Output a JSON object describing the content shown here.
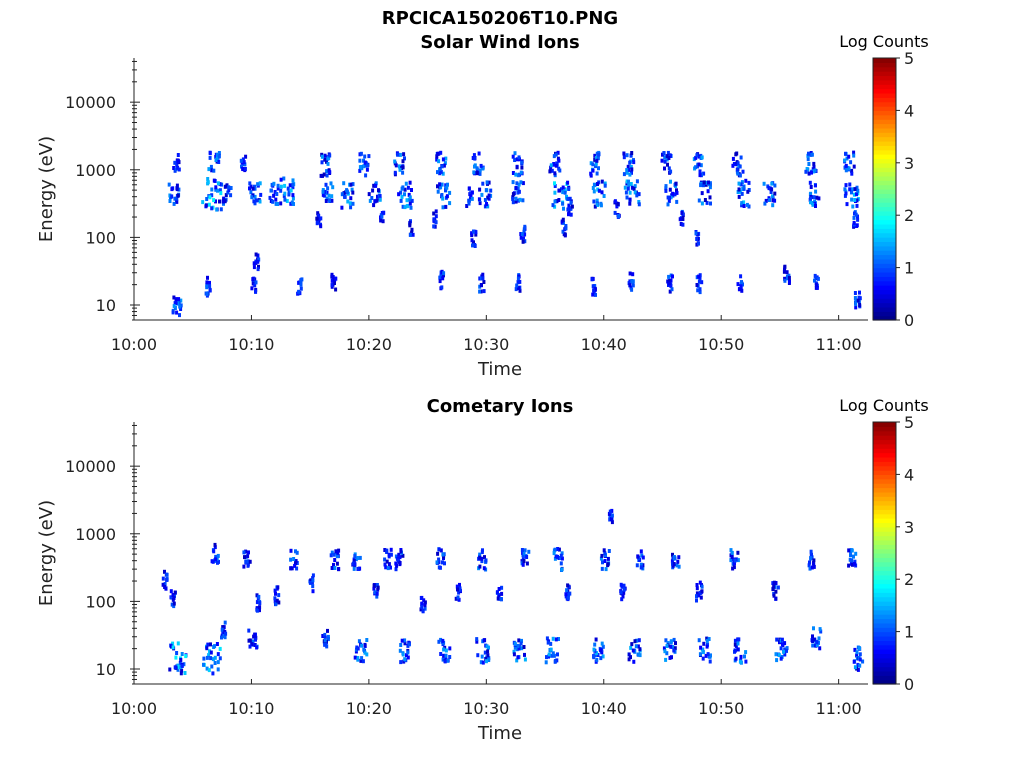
{
  "figure": {
    "title": "RPCICA150206T10.PNG"
  },
  "chart_data": [
    {
      "type": "heatmap",
      "title": "Solar Wind Ions",
      "xlabel": "Time",
      "ylabel": "Energy (eV)",
      "x_ticks": [
        "10:00",
        "10:10",
        "10:20",
        "10:30",
        "10:40",
        "10:50",
        "11:00"
      ],
      "x_range_minutes": [
        0,
        62.5
      ],
      "y_scale": "log",
      "y_range": [
        6,
        45000
      ],
      "y_ticks": [
        10,
        100,
        1000,
        10000
      ],
      "y_tick_labels": [
        "10",
        "100",
        "1000",
        "10000"
      ],
      "colorbar": {
        "label": "Log Counts",
        "range": [
          0,
          5
        ],
        "ticks": [
          "0",
          "1",
          "2",
          "3",
          "4",
          "5"
        ],
        "colormap": "jet"
      },
      "clusters": [
        [
          3.2,
          470,
          1
        ],
        [
          3.5,
          1300,
          0.5
        ],
        [
          3.6,
          10,
          0.8
        ],
        [
          6.2,
          20,
          0.5
        ],
        [
          6.5,
          470,
          1.7
        ],
        [
          6.7,
          1500,
          0.9
        ],
        [
          7.8,
          470,
          0.7
        ],
        [
          9.2,
          1400,
          0.4
        ],
        [
          10.2,
          460,
          1.0
        ],
        [
          10.3,
          48,
          0.4
        ],
        [
          10.1,
          21,
          0.4
        ],
        [
          11.8,
          470,
          0.7
        ],
        [
          12.9,
          510,
          1.3
        ],
        [
          14.0,
          21,
          0.4
        ],
        [
          15.6,
          200,
          0.4
        ],
        [
          16.3,
          1300,
          1.0
        ],
        [
          16.4,
          470,
          0.9
        ],
        [
          16.9,
          24,
          0.4
        ],
        [
          18.0,
          440,
          1.1
        ],
        [
          19.5,
          1300,
          0.9
        ],
        [
          20.4,
          460,
          1.0
        ],
        [
          21.0,
          200,
          0.3
        ],
        [
          22.5,
          1300,
          0.9
        ],
        [
          23.0,
          460,
          1.2
        ],
        [
          23.5,
          150,
          0.3
        ],
        [
          25.5,
          200,
          0.3
        ],
        [
          26.0,
          1300,
          0.9
        ],
        [
          26.2,
          460,
          1.1
        ],
        [
          26.1,
          25,
          0.4
        ],
        [
          28.5,
          430,
          0.6
        ],
        [
          29.2,
          1300,
          0.9
        ],
        [
          29.7,
          470,
          1.1
        ],
        [
          28.8,
          100,
          0.4
        ],
        [
          29.5,
          23,
          0.5
        ],
        [
          32.5,
          1300,
          0.9
        ],
        [
          32.6,
          470,
          1.0
        ],
        [
          32.6,
          23,
          0.4
        ],
        [
          33.0,
          120,
          0.4
        ],
        [
          35.7,
          1300,
          0.9
        ],
        [
          36.3,
          470,
          1.5
        ],
        [
          36.5,
          150,
          0.4
        ],
        [
          37.0,
          300,
          0.4
        ],
        [
          39.2,
          1300,
          0.9
        ],
        [
          39.5,
          470,
          1.1
        ],
        [
          39.0,
          20,
          0.4
        ],
        [
          41.0,
          280,
          0.4
        ],
        [
          42.0,
          1300,
          0.9
        ],
        [
          42.3,
          470,
          1.2
        ],
        [
          42.2,
          24,
          0.4
        ],
        [
          45.2,
          1300,
          0.9
        ],
        [
          45.6,
          470,
          1.1
        ],
        [
          46.5,
          200,
          0.3
        ],
        [
          45.5,
          22,
          0.5
        ],
        [
          48.0,
          1300,
          0.9
        ],
        [
          48.5,
          470,
          1.0
        ],
        [
          47.8,
          100,
          0.3
        ],
        [
          48.0,
          22,
          0.5
        ],
        [
          51.3,
          1300,
          0.9
        ],
        [
          51.8,
          470,
          1.2
        ],
        [
          51.5,
          22,
          0.4
        ],
        [
          54.0,
          470,
          1.0
        ],
        [
          55.5,
          30,
          0.5
        ],
        [
          57.5,
          1300,
          0.9
        ],
        [
          57.8,
          470,
          1.0
        ],
        [
          58.0,
          22,
          0.4
        ],
        [
          60.8,
          1300,
          0.9
        ],
        [
          61.0,
          470,
          1.2
        ],
        [
          61.3,
          200,
          0.4
        ],
        [
          61.5,
          12,
          0.5
        ]
      ]
    },
    {
      "type": "heatmap",
      "title": "Cometary Ions",
      "xlabel": "Time",
      "ylabel": "Energy (eV)",
      "x_ticks": [
        "10:00",
        "10:10",
        "10:20",
        "10:30",
        "10:40",
        "10:50",
        "11:00"
      ],
      "x_range_minutes": [
        0,
        62.5
      ],
      "y_scale": "log",
      "y_range": [
        6,
        45000
      ],
      "y_ticks": [
        10,
        100,
        1000,
        10000
      ],
      "y_tick_labels": [
        "10",
        "100",
        "1000",
        "10000"
      ],
      "colorbar": {
        "label": "Log Counts",
        "range": [
          0,
          5
        ],
        "ticks": [
          "0",
          "1",
          "2",
          "3",
          "4",
          "5"
        ],
        "colormap": "jet"
      },
      "clusters": [
        [
          2.5,
          220,
          0.4
        ],
        [
          3.6,
          15,
          1.6
        ],
        [
          3.2,
          120,
          0.4
        ],
        [
          6.5,
          15,
          1.5
        ],
        [
          6.8,
          550,
          0.6
        ],
        [
          7.5,
          40,
          0.4
        ],
        [
          9.5,
          450,
          0.6
        ],
        [
          10.0,
          30,
          0.8
        ],
        [
          10.5,
          100,
          0.4
        ],
        [
          12.0,
          130,
          0.4
        ],
        [
          13.5,
          450,
          0.6
        ],
        [
          15.0,
          200,
          0.4
        ],
        [
          16.2,
          30,
          0.5
        ],
        [
          17.0,
          450,
          0.7
        ],
        [
          18.8,
          450,
          0.7
        ],
        [
          19.2,
          20,
          1.0
        ],
        [
          20.5,
          150,
          0.4
        ],
        [
          21.5,
          450,
          0.6
        ],
        [
          22.5,
          450,
          0.7
        ],
        [
          23.0,
          20,
          0.9
        ],
        [
          24.5,
          100,
          0.4
        ],
        [
          26.0,
          450,
          0.7
        ],
        [
          26.3,
          20,
          1.0
        ],
        [
          27.5,
          150,
          0.4
        ],
        [
          29.5,
          450,
          0.7
        ],
        [
          29.6,
          20,
          1.1
        ],
        [
          31.0,
          150,
          0.4
        ],
        [
          32.7,
          20,
          1.0
        ],
        [
          33.2,
          450,
          0.6
        ],
        [
          35.5,
          20,
          1.1
        ],
        [
          36.0,
          450,
          0.8
        ],
        [
          36.8,
          150,
          0.4
        ],
        [
          39.5,
          20,
          1.0
        ],
        [
          40.0,
          450,
          0.7
        ],
        [
          40.5,
          2000,
          0.3
        ],
        [
          41.5,
          150,
          0.4
        ],
        [
          42.5,
          20,
          1.0
        ],
        [
          43.0,
          450,
          0.6
        ],
        [
          45.5,
          20,
          1.0
        ],
        [
          46.0,
          450,
          0.6
        ],
        [
          48.0,
          150,
          0.5
        ],
        [
          48.5,
          20,
          1.0
        ],
        [
          51.0,
          450,
          0.7
        ],
        [
          51.5,
          20,
          1.0
        ],
        [
          54.5,
          150,
          0.5
        ],
        [
          55.0,
          20,
          1.0
        ],
        [
          57.5,
          450,
          0.6
        ],
        [
          58.0,
          30,
          0.8
        ],
        [
          61.0,
          450,
          0.7
        ],
        [
          61.5,
          15,
          1.0
        ]
      ]
    }
  ]
}
